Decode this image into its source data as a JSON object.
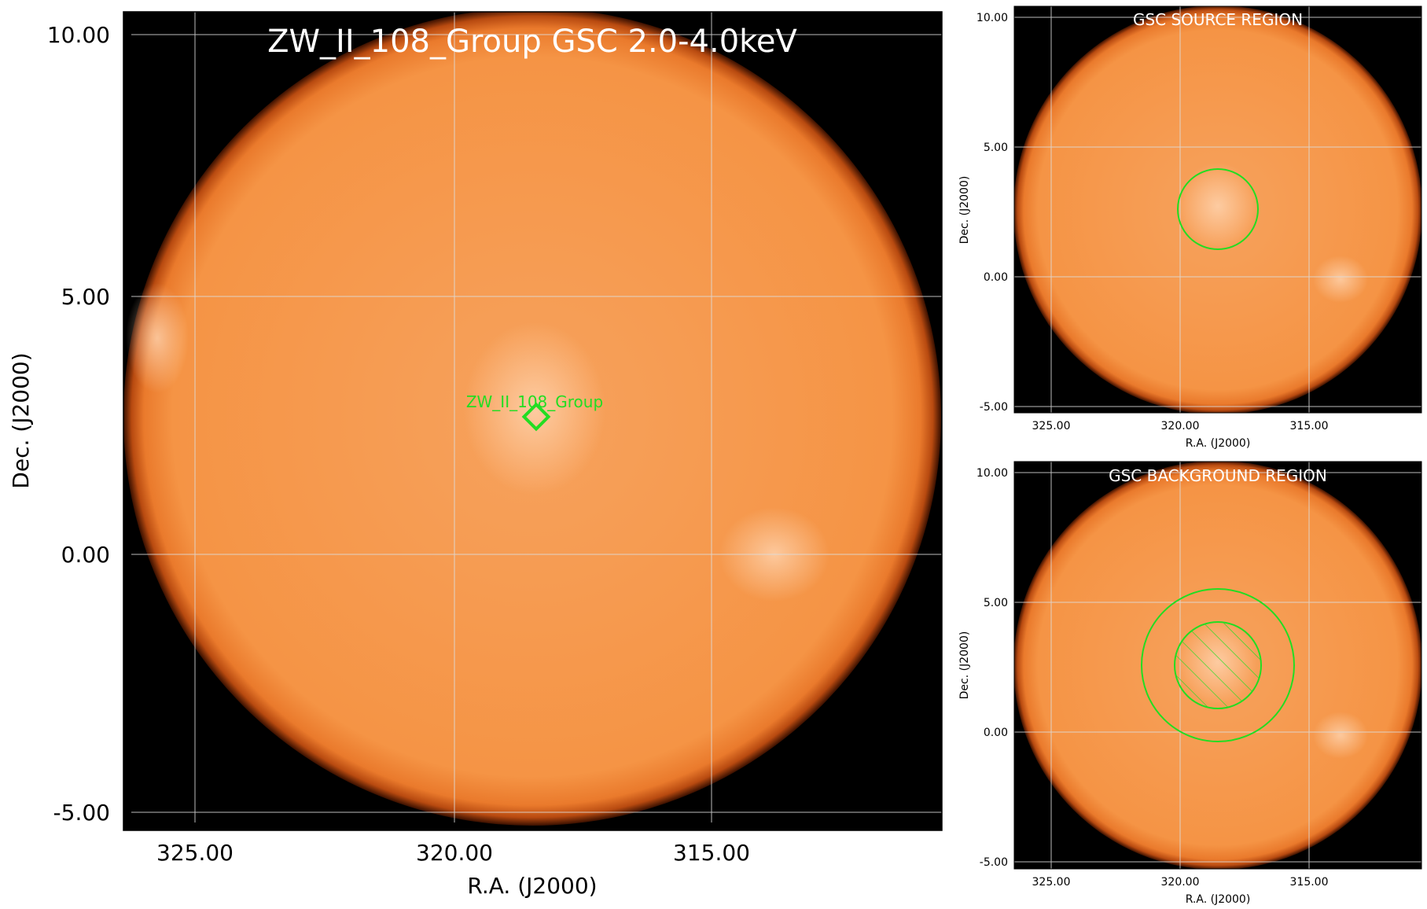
{
  "main_panel": {
    "title": "ZW_II_108_Group GSC 2.0-4.0keV",
    "xlabel": "R.A. (J2000)",
    "ylabel": "Dec. (J2000)",
    "x_ticks": [
      "325.00",
      "320.00",
      "315.00"
    ],
    "y_ticks": [
      "10.00",
      "5.00",
      "0.00",
      "-5.00"
    ],
    "source_label": "ZW_II_108_Group",
    "marker_color": "#22dd22"
  },
  "source_panel": {
    "title": "GSC SOURCE REGION",
    "xlabel": "R.A. (J2000)",
    "ylabel": "Dec. (J2000)",
    "x_ticks": [
      "325.00",
      "320.00",
      "315.00"
    ],
    "y_ticks": [
      "10.00",
      "5.00",
      "0.00",
      "-5.00"
    ],
    "region_color": "#22dd22"
  },
  "background_panel": {
    "title": "GSC BACKGROUND REGION",
    "xlabel": "R.A. (J2000)",
    "ylabel": "Dec. (J2000)",
    "x_ticks": [
      "325.00",
      "320.00",
      "315.00"
    ],
    "y_ticks": [
      "10.00",
      "5.00",
      "0.00",
      "-5.00"
    ],
    "region_color": "#22dd22"
  },
  "colors": {
    "disk": "#f59445",
    "disk_edge": "#e0611a",
    "background": "#000000",
    "grid": "#dddddd"
  }
}
